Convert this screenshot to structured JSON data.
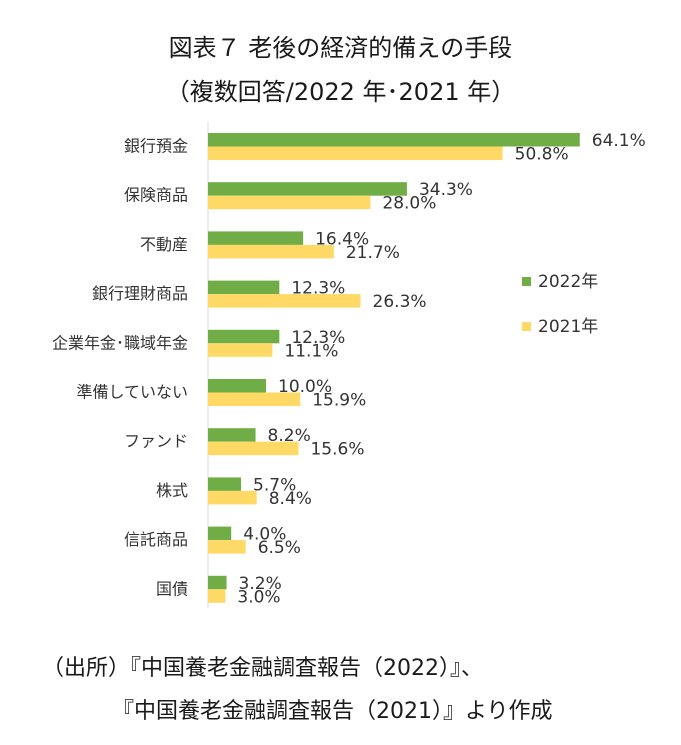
{
  "header": {
    "title": "図表７ 老後の経済的備えの手段",
    "subtitle": "（複数回答/2022 年･2021 年）"
  },
  "source": {
    "line1": "（出所）『中国養老金融調査報告（2022）』、",
    "line2": "『中国養老金融調査報告（2021）』より作成"
  },
  "chart_data": {
    "type": "bar",
    "orientation": "horizontal",
    "categories": [
      "銀行預金",
      "保険商品",
      "不動産",
      "銀行理財商品",
      "企業年金･職域年金",
      "準備していない",
      "ファンド",
      "株式",
      "信託商品",
      "国債"
    ],
    "series": [
      {
        "name": "2022年",
        "color": "#70ad47",
        "values": [
          64.1,
          34.3,
          16.4,
          12.3,
          12.3,
          10.0,
          8.2,
          5.7,
          4.0,
          3.2
        ],
        "labels": [
          "64.1%",
          "34.3%",
          "16.4%",
          "12.3%",
          "12.3%",
          "10.0%",
          "8.2%",
          "5.7%",
          "4.0%",
          "3.2%"
        ]
      },
      {
        "name": "2021年",
        "color": "#ffd966",
        "values": [
          50.8,
          28.0,
          21.7,
          26.3,
          11.1,
          15.9,
          15.6,
          8.4,
          6.5,
          3.0
        ],
        "labels": [
          "50.8%",
          "28.0%",
          "21.7%",
          "26.3%",
          "11.1%",
          "15.9%",
          "15.6%",
          "8.4%",
          "6.5%",
          "3.0%"
        ]
      }
    ],
    "xlim": [
      0,
      70
    ],
    "grid": false,
    "legend": "right"
  }
}
